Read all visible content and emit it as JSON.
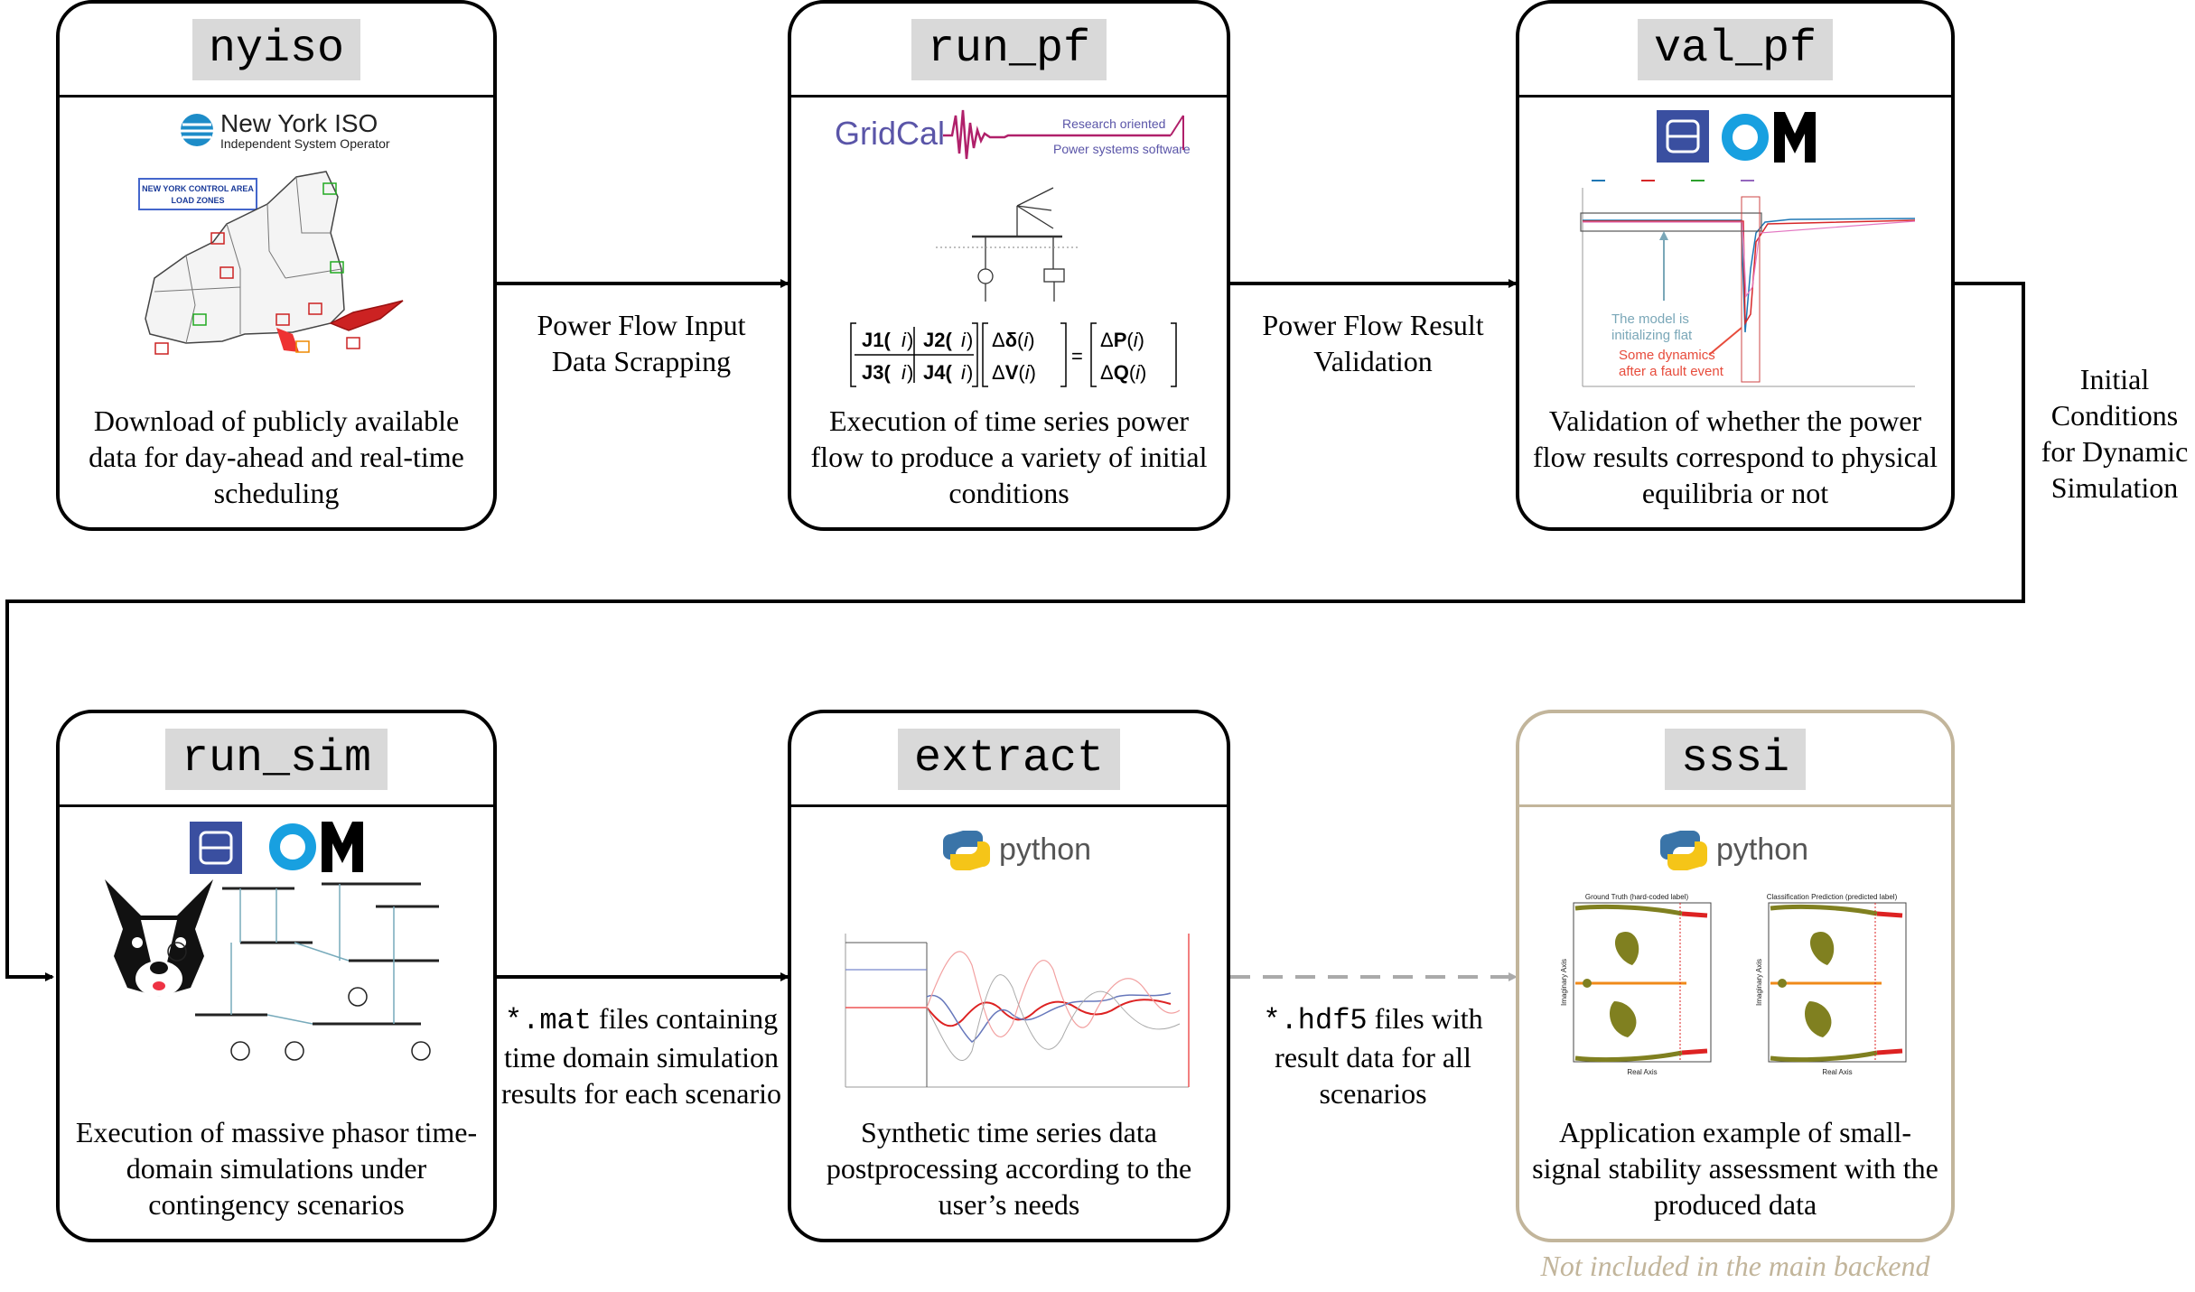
{
  "boxes": {
    "nyiso": {
      "tag": "nyiso",
      "logo_title": "New York ISO",
      "logo_sub": "Independent System Operator",
      "map_title": "NEW YORK CONTROL AREA",
      "map_sub": "LOAD ZONES",
      "desc": "Download of publicly available data for day-ahead and real-time scheduling"
    },
    "run_pf": {
      "tag": "run_pf",
      "logo": "GridCal",
      "logo_tag1": "Research oriented",
      "logo_tag2": "Power systems software",
      "desc": "Execution of time series power flow to produce a variety of initial conditions"
    },
    "val_pf": {
      "tag": "val_pf",
      "om_logo": "OM",
      "annot1a": "The model is",
      "annot1b": "initializing flat",
      "annot2a": "Some dynamics",
      "annot2b": "after a fault event",
      "desc": "Validation of whether the power flow results correspond to physical equilibria or not"
    },
    "run_sim": {
      "tag": "run_sim",
      "om_logo": "OM",
      "desc": "Execution of massive phasor time-domain simulations under contingency scenarios"
    },
    "extract": {
      "tag": "extract",
      "python_logo": "python",
      "desc": "Synthetic time series data postprocessing according to the user’s needs"
    },
    "sssi": {
      "tag": "sssi",
      "python_logo": "python",
      "plot1_title": "Ground Truth (hard-coded label)",
      "plot2_title": "Classification Prediction (predicted label)",
      "xaxis": "Real Axis",
      "yaxis": "Imaginary Axis",
      "desc": "Application example of small-signal stability assessment with the produced data"
    }
  },
  "arrows": {
    "a1": "Power Flow Input Data Scrapping",
    "a2": "Power Flow Result Validation",
    "a3": "Initial Conditions for Dynamic Simulation",
    "a4_code": "*.mat",
    "a4_text": " files containing time domain simulation results for each scenario",
    "a5_code": "*.hdf5",
    "a5_text": " files with result data for all scenarios"
  },
  "footnote": "Not included in the main backend",
  "colors": {
    "border": "#000000",
    "muted": "#c2b59b",
    "tag_bg": "#d9d9d9",
    "arrow_dashed": "#aaaaaa",
    "om_blue": "#18a0e0",
    "gridcal": "#7b3fa3",
    "python_blue": "#3a74a8",
    "python_yellow": "#f5c518"
  }
}
